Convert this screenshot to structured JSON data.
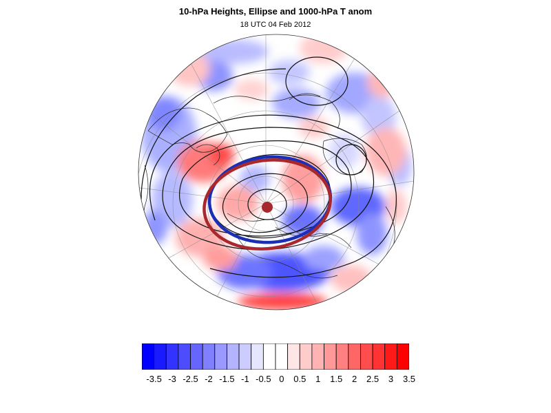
{
  "header": {
    "title": "10-hPa Heights, Ellipse and 1000-hPa T anom",
    "subtitle": "18 UTC 04 Feb 2012"
  },
  "map": {
    "projection": "polar stereographic (northern hemisphere)",
    "fields": [
      "10-hPa geopotential height contours",
      "1000-hPa temperature anomaly shading"
    ],
    "ellipse_colors": {
      "blue_ellipse": "#1a2fb5",
      "red_ellipse": "#a8282d"
    },
    "center_marker_color": "#a8282d"
  },
  "colorbar": {
    "labels": [
      "-3.5",
      "-3",
      "-2.5",
      "-2",
      "-1.5",
      "-1",
      "-0.5",
      "0",
      "0.5",
      "1",
      "1.5",
      "2",
      "2.5",
      "3",
      "3.5"
    ],
    "colors": [
      "#0000ff",
      "#1a1aff",
      "#3333ff",
      "#4d4dff",
      "#6666ff",
      "#8080ff",
      "#9999ff",
      "#b3b3ff",
      "#ccccff",
      "#e6e6ff",
      "#ffffff",
      "#ffffff",
      "#ffe6e6",
      "#ffcccc",
      "#ffb3b3",
      "#ff9999",
      "#ff8080",
      "#ff6666",
      "#ff4d4d",
      "#ff3333",
      "#ff1a1a",
      "#ff0000"
    ]
  }
}
